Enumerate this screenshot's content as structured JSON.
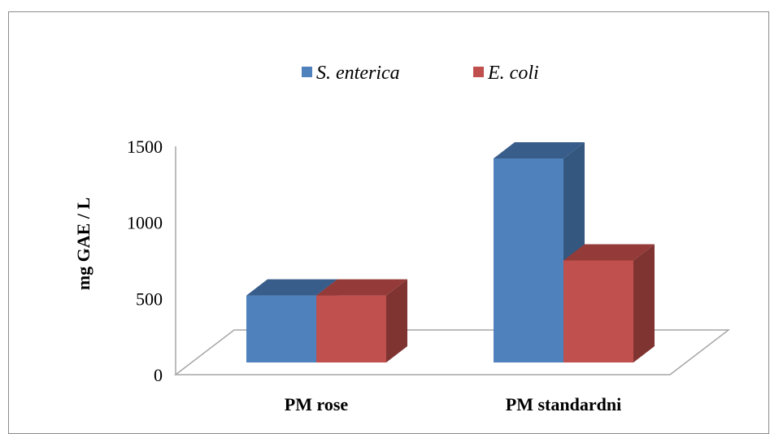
{
  "chart_data": {
    "type": "bar",
    "categories": [
      "PM rose",
      "PM standardni"
    ],
    "series": [
      {
        "name": "S. enterica",
        "values": [
          440,
          1340
        ],
        "color": "#4f81bd",
        "top_color": "#385d8a",
        "side_color": "#34577f"
      },
      {
        "name": "E. coli",
        "values": [
          440,
          670
        ],
        "color": "#c0504d",
        "top_color": "#943b39",
        "side_color": "#7f3432"
      }
    ],
    "ylabel": "mg GAE / L",
    "ylim": [
      0,
      1500
    ],
    "yticks": [
      0,
      500,
      1000,
      1500
    ],
    "grid": false,
    "legend": "top",
    "floor_color": "#a6a6a6"
  }
}
